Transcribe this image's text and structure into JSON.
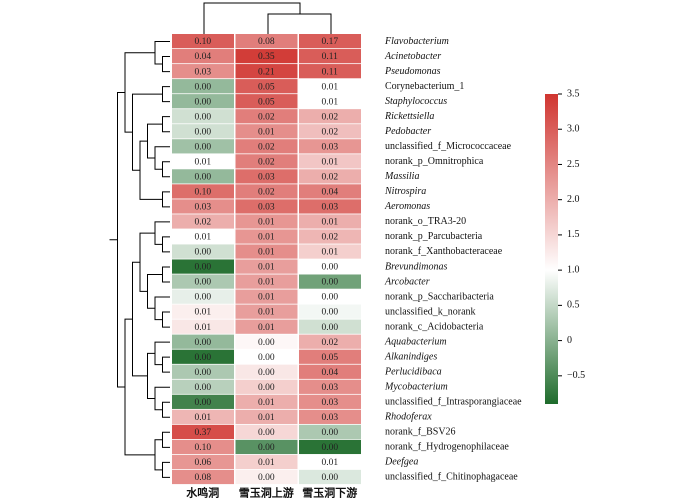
{
  "chart_data": {
    "type": "heatmap",
    "columns": [
      "水鸣洞",
      "雪玉洞上游",
      "雪玉洞下游"
    ],
    "rows": [
      "Flavobacterium",
      "Acinetobacter",
      "Pseudomonas",
      "Corynebacterium_1",
      "Staphylococcus",
      "Rickettsiella",
      "Pedobacter",
      "unclassified_f_Micrococcaceae",
      "norank_p_Omnitrophica",
      "Massilia",
      "Nitrospira",
      "Aeromonas",
      "norank_o_TRA3-20",
      "norank_p_Parcubacteria",
      "norank_f_Xanthobacteraceae",
      "Brevundimonas",
      "Arcobacter",
      "norank_p_Saccharibacteria",
      "unclassified_k_norank",
      "norank_c_Acidobacteria",
      "Aquabacterium",
      "Alkanindiges",
      "Perlucidibaca",
      "Mycobacterium",
      "unclassified_f_Intrasporangiaceae",
      "Rhodoferax",
      "norank_f_BSV26",
      "norank_f_Hydrogenophilaceae",
      "Deefgea",
      "unclassified_f_Chitinophagaceae"
    ],
    "italic": [
      true,
      true,
      true,
      false,
      true,
      true,
      true,
      false,
      false,
      true,
      true,
      true,
      false,
      false,
      false,
      true,
      true,
      false,
      false,
      false,
      true,
      true,
      true,
      true,
      false,
      true,
      false,
      false,
      true,
      false
    ],
    "values": [
      [
        0.1,
        0.08,
        0.17
      ],
      [
        0.04,
        0.35,
        0.11
      ],
      [
        0.03,
        0.21,
        0.11
      ],
      [
        0,
        0.05,
        0.01
      ],
      [
        0,
        0.05,
        0.01
      ],
      [
        0,
        0.02,
        0.02
      ],
      [
        0,
        0.01,
        0.02
      ],
      [
        0,
        0.02,
        0.03
      ],
      [
        0.01,
        0.02,
        0.01
      ],
      [
        0,
        0.03,
        0.02
      ],
      [
        0.1,
        0.02,
        0.04
      ],
      [
        0.03,
        0.03,
        0.03
      ],
      [
        0.02,
        0.01,
        0.01
      ],
      [
        0.01,
        0.01,
        0.02
      ],
      [
        0,
        0.01,
        0.01
      ],
      [
        0,
        0.01,
        0
      ],
      [
        0,
        0.01,
        0
      ],
      [
        0,
        0.01,
        0
      ],
      [
        0.01,
        0.01,
        0
      ],
      [
        0.01,
        0.01,
        0
      ],
      [
        0,
        0,
        0.02
      ],
      [
        0,
        0,
        0.05
      ],
      [
        0,
        0,
        0.04
      ],
      [
        0,
        0,
        0.03
      ],
      [
        0,
        0.01,
        0.03
      ],
      [
        0.01,
        0.01,
        0.03
      ],
      [
        0.37,
        0,
        0
      ],
      [
        0.1,
        0,
        0
      ],
      [
        0.06,
        0.01,
        0.01
      ],
      [
        0.08,
        0,
        0
      ]
    ],
    "value_labels": [
      [
        "0.10",
        "0.08",
        "0.17"
      ],
      [
        "0.04",
        "0.35",
        "0.11"
      ],
      [
        "0.03",
        "0.21",
        "0.11"
      ],
      [
        "0.00",
        "0.05",
        "0.01"
      ],
      [
        "0.00",
        "0.05",
        "0.01"
      ],
      [
        "0.00",
        "0.02",
        "0.02"
      ],
      [
        "0.00",
        "0.01",
        "0.02"
      ],
      [
        "0.00",
        "0.02",
        "0.03"
      ],
      [
        "0.01",
        "0.02",
        "0.01"
      ],
      [
        "0.00",
        "0.03",
        "0.02"
      ],
      [
        "0.10",
        "0.02",
        "0.04"
      ],
      [
        "0.03",
        "0.03",
        "0.03"
      ],
      [
        "0.02",
        "0.01",
        "0.01"
      ],
      [
        "0.01",
        "0.01",
        "0.02"
      ],
      [
        "0.00",
        "0.01",
        "0.01"
      ],
      [
        "0.00",
        "0.01",
        "0.00"
      ],
      [
        "0.00",
        "0.01",
        "0.00"
      ],
      [
        "0.00",
        "0.01",
        "0.00"
      ],
      [
        "0.01",
        "0.01",
        "0.00"
      ],
      [
        "0.01",
        "0.01",
        "0.00"
      ],
      [
        "0.00",
        "0.00",
        "0.02"
      ],
      [
        "0.00",
        "0.00",
        "0.05"
      ],
      [
        "0.00",
        "0.00",
        "0.04"
      ],
      [
        "0.00",
        "0.00",
        "0.03"
      ],
      [
        "0.00",
        "0.01",
        "0.03"
      ],
      [
        "0.01",
        "0.01",
        "0.03"
      ],
      [
        "0.37",
        "0.00",
        "0.00"
      ],
      [
        "0.10",
        "0.00",
        "0.00"
      ],
      [
        "0.06",
        "0.01",
        "0.01"
      ],
      [
        "0.08",
        "0.00",
        "0.00"
      ]
    ],
    "color_values": [
      [
        3.0,
        2.6,
        3.0
      ],
      [
        2.6,
        3.4,
        3.0
      ],
      [
        2.4,
        3.3,
        3.0
      ],
      [
        0.1,
        3.0,
        1.0
      ],
      [
        0.1,
        3.0,
        1.0
      ],
      [
        0.6,
        2.6,
        2.0
      ],
      [
        0.6,
        2.4,
        1.8
      ],
      [
        0.2,
        2.6,
        2.3
      ],
      [
        1.0,
        2.6,
        1.7
      ],
      [
        0.1,
        2.8,
        2.0
      ],
      [
        2.8,
        2.6,
        2.6
      ],
      [
        2.4,
        2.8,
        2.8
      ],
      [
        2.0,
        2.3,
        2.0
      ],
      [
        1.0,
        2.3,
        1.9
      ],
      [
        0.6,
        2.4,
        1.6
      ],
      [
        -0.8,
        2.2,
        1.0
      ],
      [
        0.3,
        2.2,
        -0.2
      ],
      [
        0.8,
        2.2,
        1.0
      ],
      [
        1.2,
        2.2,
        0.9
      ],
      [
        1.3,
        2.2,
        0.6
      ],
      [
        0.1,
        1.1,
        2.0
      ],
      [
        -0.8,
        1.0,
        2.6
      ],
      [
        0.3,
        1.3,
        2.6
      ],
      [
        0.4,
        1.6,
        2.4
      ],
      [
        -0.6,
        2.0,
        2.4
      ],
      [
        1.9,
        2.0,
        2.4
      ],
      [
        3.2,
        1.5,
        0.3
      ],
      [
        2.4,
        -0.4,
        -0.8
      ],
      [
        2.3,
        1.6,
        1.0
      ],
      [
        2.4,
        1.2,
        0.7
      ]
    ],
    "colors": [
      "#1e6b2b",
      "#ffffff",
      "#d03530"
    ],
    "clim": [
      -0.9,
      3.5
    ],
    "cticks": [
      {
        "value": -0.5,
        "label": "−0.5"
      },
      0,
      0.5,
      {
        "value": 1,
        "label": "1.0"
      },
      1.5,
      {
        "value": 2,
        "label": "2.0"
      },
      2.5,
      {
        "value": 3,
        "label": "3.0"
      },
      3.5
    ]
  }
}
